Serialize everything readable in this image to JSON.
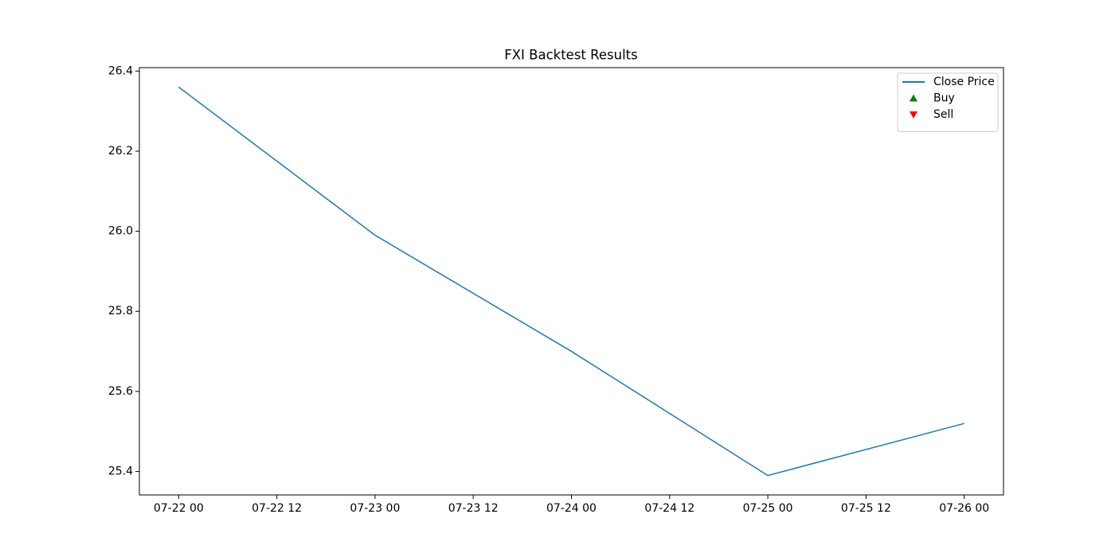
{
  "chart_data": {
    "type": "line",
    "title": "FXI Backtest Results",
    "x": [
      "07-22 00",
      "07-23 00",
      "07-24 00",
      "07-25 00",
      "07-26 00"
    ],
    "series": [
      {
        "name": "Close Price",
        "color": "#1f77b4",
        "marker": "line",
        "values": [
          26.36,
          25.99,
          25.7,
          25.39,
          25.52
        ]
      },
      {
        "name": "Buy",
        "color": "#008000",
        "marker": "triangle-up",
        "values": [
          null,
          null,
          null,
          null,
          null
        ]
      },
      {
        "name": "Sell",
        "color": "#ff0000",
        "marker": "triangle-down",
        "values": [
          null,
          null,
          null,
          null,
          null
        ]
      }
    ],
    "xlim": [
      -0.2,
      4.2
    ],
    "xticks": [
      {
        "value": 0,
        "label": "07-22 00"
      },
      {
        "value": 0.5,
        "label": "07-22 12"
      },
      {
        "value": 1,
        "label": "07-23 00"
      },
      {
        "value": 1.5,
        "label": "07-23 12"
      },
      {
        "value": 2,
        "label": "07-24 00"
      },
      {
        "value": 2.5,
        "label": "07-24 12"
      },
      {
        "value": 3,
        "label": "07-25 00"
      },
      {
        "value": 3.5,
        "label": "07-25 12"
      },
      {
        "value": 4,
        "label": "07-26 00"
      }
    ],
    "ylim": [
      25.3415,
      26.4085
    ],
    "yticks": [
      {
        "value": 25.4,
        "label": "25.4"
      },
      {
        "value": 25.6,
        "label": "25.6"
      },
      {
        "value": 25.8,
        "label": "25.8"
      },
      {
        "value": 26.0,
        "label": "26.0"
      },
      {
        "value": 26.2,
        "label": "26.2"
      },
      {
        "value": 26.4,
        "label": "26.4"
      }
    ],
    "legend": "upper right"
  }
}
